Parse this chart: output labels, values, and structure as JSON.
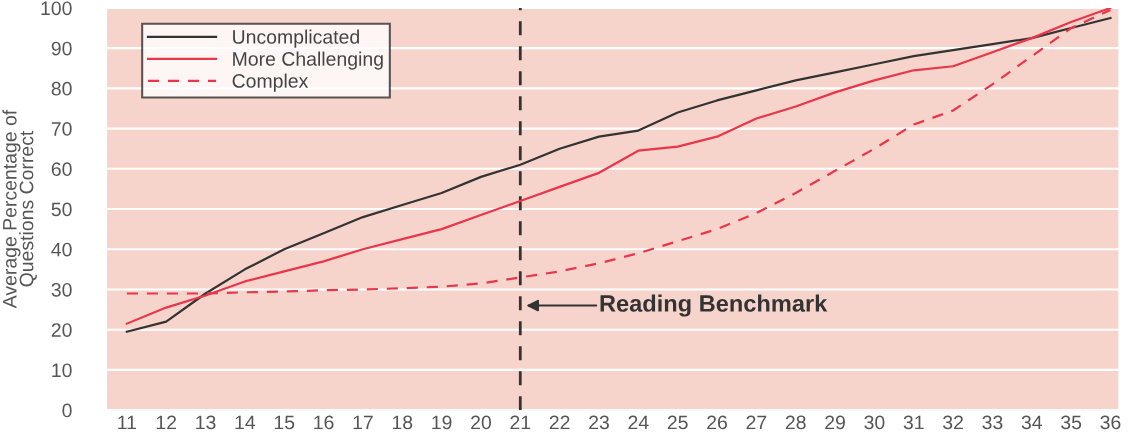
{
  "chart_data": {
    "type": "line",
    "ylabel": "Average Percentage of\nQuestions Correct",
    "x": [
      11,
      12,
      13,
      14,
      15,
      16,
      17,
      18,
      19,
      20,
      21,
      22,
      23,
      24,
      25,
      26,
      27,
      28,
      29,
      30,
      31,
      32,
      33,
      34,
      35,
      36
    ],
    "series": [
      {
        "name": "Uncomplicated",
        "color": "#333333",
        "line_style": "solid",
        "values": [
          19.5,
          22,
          29,
          35,
          40,
          44,
          48,
          51,
          54,
          58,
          61,
          65,
          68,
          69.5,
          74,
          77,
          79.5,
          82,
          84,
          86,
          88,
          89.5,
          91,
          92.5,
          95,
          97.5
        ]
      },
      {
        "name": "More Challenging",
        "color": "#e8364a",
        "line_style": "solid",
        "values": [
          21.5,
          25.5,
          28.5,
          32,
          34.5,
          37,
          40,
          42.5,
          45,
          48.5,
          52,
          55.5,
          59,
          64.5,
          65.5,
          68,
          72.5,
          75.5,
          79,
          82,
          84.5,
          85.5,
          89,
          92.5,
          96.5,
          100
        ]
      },
      {
        "name": "Complex",
        "color": "#e8364a",
        "line_style": "dashed",
        "values": [
          29,
          29,
          29,
          29.3,
          29.5,
          29.8,
          30,
          30.3,
          30.7,
          31.5,
          33,
          34.5,
          36.5,
          39,
          42,
          45,
          49,
          54,
          59.5,
          65,
          71,
          74.5,
          81,
          88,
          95,
          99.5
        ]
      }
    ],
    "xlim": [
      10.5,
      36.2
    ],
    "xticks": [
      11,
      12,
      13,
      14,
      15,
      16,
      17,
      18,
      19,
      20,
      21,
      22,
      23,
      24,
      25,
      26,
      27,
      28,
      29,
      30,
      31,
      32,
      33,
      34,
      35,
      36
    ],
    "ylim": [
      0,
      100
    ],
    "yticks": [
      0,
      10,
      20,
      30,
      40,
      50,
      60,
      70,
      80,
      90,
      100
    ],
    "ref_lines": [
      {
        "axis": "x",
        "value": 21,
        "label": "Reading Benchmark",
        "color": "#333333",
        "line_style": "dashed"
      }
    ],
    "grid": "y",
    "legend": "top left",
    "marker": "none"
  }
}
